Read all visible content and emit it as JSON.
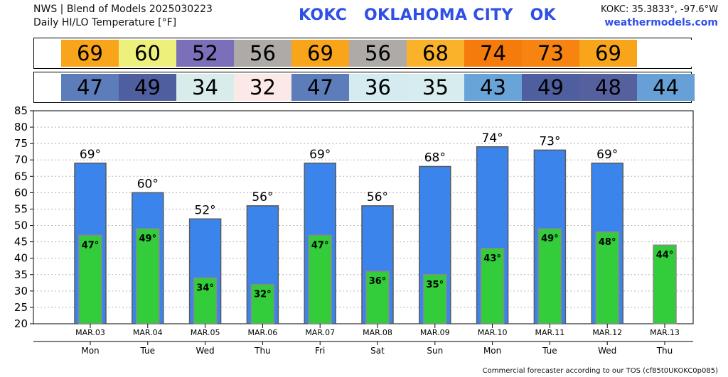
{
  "header": {
    "line1": "NWS | Blend of Models 2025030223",
    "line2": "Daily HI/LO Temperature [°F]",
    "station": "KOKC   OKLAHOMA CITY   OK",
    "coords": "KOKC: 35.3833°, -97.6°W",
    "website": "weathermodels.com"
  },
  "footer": "Commercial forecaster according to our TOS (cf85t0UKOKC0p085)",
  "strips": {
    "hi": [
      {
        "value": "69",
        "color": "#f9a51b"
      },
      {
        "value": "60",
        "color": "#eef07c"
      },
      {
        "value": "52",
        "color": "#7a6fb8"
      },
      {
        "value": "56",
        "color": "#adaaa7"
      },
      {
        "value": "69",
        "color": "#f9a51b"
      },
      {
        "value": "56",
        "color": "#adaaa7"
      },
      {
        "value": "68",
        "color": "#f9b22a"
      },
      {
        "value": "74",
        "color": "#f57b0c"
      },
      {
        "value": "73",
        "color": "#f78410"
      },
      {
        "value": "69",
        "color": "#f9a51b"
      },
      {
        "value": "",
        "color": "#ffffff"
      }
    ],
    "lo": [
      {
        "value": "47",
        "color": "#5c7cba"
      },
      {
        "value": "49",
        "color": "#4e5e9e"
      },
      {
        "value": "34",
        "color": "#d8ecec"
      },
      {
        "value": "32",
        "color": "#fbe9e7"
      },
      {
        "value": "47",
        "color": "#5c7cba"
      },
      {
        "value": "36",
        "color": "#d4ecf0"
      },
      {
        "value": "35",
        "color": "#d6ecee"
      },
      {
        "value": "43",
        "color": "#68a4d8"
      },
      {
        "value": "49",
        "color": "#4e5e9e"
      },
      {
        "value": "48",
        "color": "#55609f"
      },
      {
        "value": "44",
        "color": "#66a0d6"
      }
    ]
  },
  "chart_data": {
    "type": "bar",
    "categories": [
      "MAR.03",
      "MAR.04",
      "MAR.05",
      "MAR.06",
      "MAR.07",
      "MAR.08",
      "MAR.09",
      "MAR.10",
      "MAR.11",
      "MAR.12",
      "MAR.13"
    ],
    "days": [
      "Mon",
      "Tue",
      "Wed",
      "Thu",
      "Fri",
      "Sat",
      "Sun",
      "Mon",
      "Tue",
      "Wed",
      "Thu"
    ],
    "series": [
      {
        "values": [
          69,
          60,
          52,
          56,
          69,
          56,
          68,
          74,
          73,
          69,
          null
        ],
        "color": "#3b84ec"
      },
      {
        "values": [
          47,
          49,
          34,
          32,
          47,
          36,
          35,
          43,
          49,
          48,
          44
        ],
        "color": "#33cc3a"
      }
    ],
    "hi_labels": [
      "69°",
      "60°",
      "52°",
      "56°",
      "69°",
      "56°",
      "68°",
      "74°",
      "73°",
      "69°",
      ""
    ],
    "lo_labels": [
      "47°",
      "49°",
      "34°",
      "32°",
      "47°",
      "36°",
      "35°",
      "43°",
      "49°",
      "48°",
      "44°"
    ],
    "ylim": [
      20,
      85
    ],
    "yticks": [
      20,
      25,
      30,
      35,
      40,
      45,
      50,
      55,
      60,
      65,
      70,
      75,
      80,
      85
    ],
    "grid": true
  }
}
